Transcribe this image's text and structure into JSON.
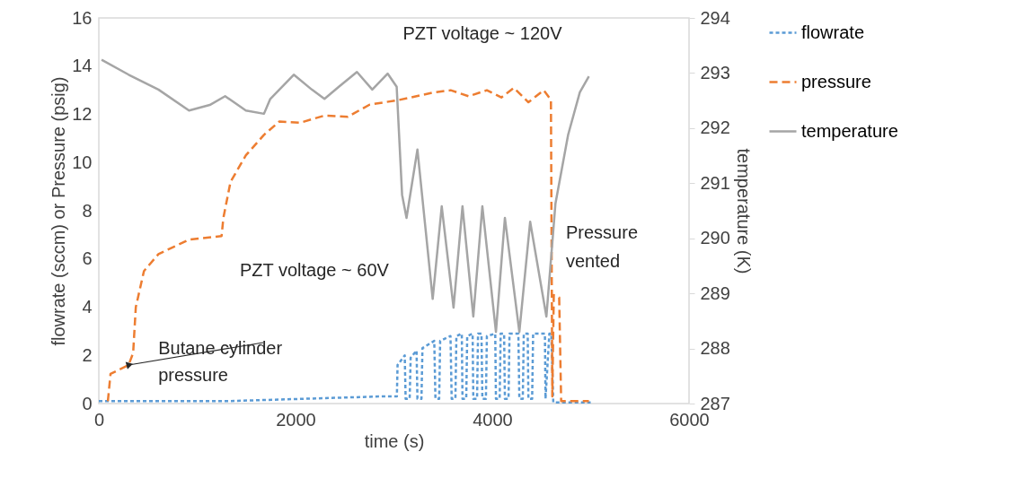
{
  "chart_data": {
    "type": "line",
    "xlabel": "time (s)",
    "ylabel": "flowrate (sccm) or Pressure (psig)",
    "y2label": "temperature (K)",
    "xlim": [
      0,
      6000
    ],
    "xticks": [
      0,
      2000,
      4000,
      6000
    ],
    "ylim": [
      0,
      16
    ],
    "yticks": [
      0,
      2,
      4,
      6,
      8,
      10,
      12,
      14,
      16
    ],
    "y2lim": [
      287,
      294
    ],
    "y2ticks": [
      287,
      288,
      289,
      290,
      291,
      292,
      293,
      294
    ],
    "grid": false,
    "legend": "right",
    "marker": "none",
    "series": [
      {
        "name": "flowrate",
        "color": "#5b9bd5",
        "line_style": "dotted",
        "x": [
          0,
          1300,
          2900,
          3030,
          3037,
          3110,
          3119,
          3160,
          3170,
          3230,
          3239,
          3280,
          3290,
          3410,
          3422,
          3460,
          3470,
          3575,
          3587,
          3625,
          3635,
          3690,
          3697,
          3735,
          3745,
          3800,
          3807,
          3845,
          3855,
          3890,
          3899,
          3935,
          3945,
          4030,
          4037,
          4075,
          4085,
          4120,
          4128,
          4165,
          4175,
          4265,
          4275,
          4310,
          4320,
          4360,
          4367,
          4405,
          4415,
          4535,
          4541,
          4580,
          4600,
          4620,
          5000
        ],
        "values": [
          0.1,
          0.1,
          0.3,
          0.3,
          1.6,
          2.0,
          0.2,
          0.2,
          1.9,
          2.2,
          0.2,
          0.2,
          2.3,
          2.6,
          0.2,
          0.2,
          2.6,
          2.8,
          0.2,
          0.2,
          2.8,
          2.9,
          0.2,
          0.2,
          2.8,
          2.9,
          0.2,
          0.2,
          2.9,
          2.9,
          0.2,
          0.2,
          2.8,
          2.9,
          0.2,
          0.2,
          2.9,
          2.9,
          0.2,
          0.2,
          2.9,
          2.9,
          0.2,
          0.2,
          2.9,
          2.9,
          0.2,
          0.2,
          2.9,
          2.9,
          0.2,
          2.9,
          2.9,
          0.05,
          0.05
        ]
      },
      {
        "name": "pressure",
        "color": "#ed7d31",
        "line_style": "dashed",
        "x": [
          92,
          119,
          303,
          349,
          376,
          459,
          606,
          917,
          1248,
          1266,
          1339,
          1495,
          1679,
          1835,
          2046,
          2294,
          2532,
          2752,
          3055,
          3394,
          3578,
          3761,
          3945,
          4092,
          4220,
          4367,
          4523,
          4596,
          4610,
          4625,
          4680,
          4700,
          4982
        ],
        "values": [
          0.1,
          1.23,
          1.6,
          2.1,
          4.0,
          5.5,
          6.2,
          6.8,
          6.95,
          7.7,
          9.2,
          10.3,
          11.15,
          11.7,
          11.65,
          11.95,
          11.9,
          12.4,
          12.6,
          12.9,
          13.0,
          12.75,
          13.0,
          12.7,
          13.1,
          12.5,
          13.0,
          12.6,
          0.3,
          4.5,
          4.4,
          0.1,
          0.1
        ]
      },
      {
        "name": "temperature",
        "color": "#a5a5a5",
        "line_style": "solid",
        "axis": "y2",
        "x": [
          28,
          303,
          606,
          917,
          1128,
          1284,
          1495,
          1679,
          1743,
          1982,
          2165,
          2294,
          2440,
          2624,
          2780,
          2936,
          3028,
          3083,
          3128,
          3239,
          3394,
          3486,
          3606,
          3697,
          3807,
          3899,
          4037,
          4128,
          4275,
          4385,
          4550,
          4642,
          4771,
          4890,
          4982
        ],
        "values": [
          293.24,
          292.97,
          292.7,
          292.32,
          292.42,
          292.58,
          292.32,
          292.26,
          292.53,
          292.97,
          292.7,
          292.53,
          292.75,
          293.02,
          292.7,
          292.99,
          292.75,
          290.79,
          290.37,
          291.61,
          288.9,
          290.58,
          288.74,
          290.58,
          288.58,
          290.58,
          288.3,
          290.37,
          288.3,
          290.3,
          288.58,
          290.63,
          291.88,
          292.65,
          292.94
        ]
      }
    ],
    "annotations": [
      "PZT voltage ~ 120V",
      "PZT voltage ~ 60V",
      {
        "text": "Butane cylinder\npressure",
        "x": 303,
        "y": 1.6
      },
      "Pressure vented"
    ]
  }
}
